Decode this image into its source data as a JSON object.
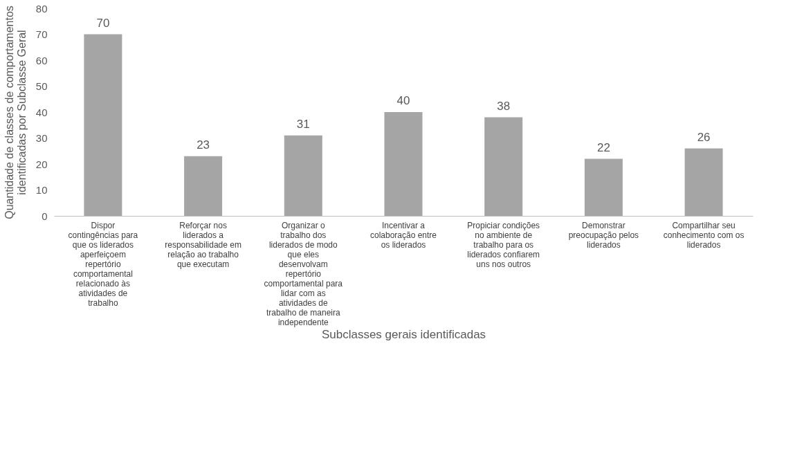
{
  "chart_data": {
    "type": "bar",
    "xlabel": "Subclasses gerais identificadas",
    "ylabel": "Quantidade de classes de comportamentos identificadas por Subclasse Geral",
    "categories": [
      "Dispor contingências para que os liderados aperfeiçoem repertório comportamental relacionado às atividades de trabalho",
      "Reforçar nos liderados a responsabilidade em relação ao trabalho que executam",
      "Organizar o trabalho dos liderados de modo que eles desenvolvam repertório comportamental para lidar com as atividades de trabalho de maneira independente",
      "Incentivar a colaboração entre os liderados",
      "Propiciar condições no ambiente de trabalho para os liderados confiarem uns nos outros",
      "Demonstrar preocupação pelos liderados",
      "Compartilhar seu conhecimento com os liderados"
    ],
    "values": [
      70,
      23,
      31,
      40,
      38,
      22,
      26
    ],
    "color": "#a5a5a5",
    "ylim": [
      0,
      80
    ],
    "yticks": [
      0,
      10,
      20,
      30,
      40,
      50,
      60,
      70,
      80
    ],
    "data_labels": true,
    "grid": false
  }
}
